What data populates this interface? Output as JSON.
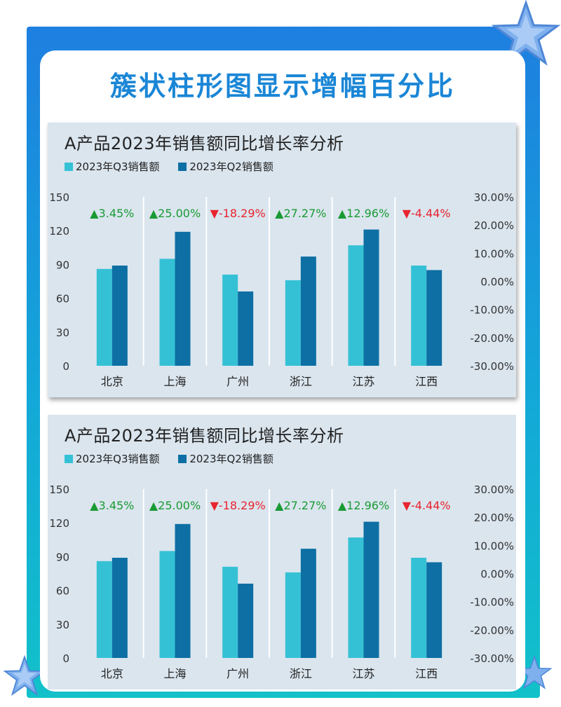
{
  "page": {
    "title": "簇状柱形图显示增幅百分比"
  },
  "colors": {
    "q3": "#35c1d5",
    "q2": "#0d6fa3",
    "up": "#1a9a33",
    "down": "#e8242e"
  },
  "charts": [
    {
      "title": "A产品2023年销售额同比增长率分析",
      "legend": [
        "2023年Q3销售额",
        "2023年Q2销售额"
      ]
    },
    {
      "title": "A产品2023年销售额同比增长率分析",
      "legend": [
        "2023年Q3销售额",
        "2023年Q2销售额"
      ]
    }
  ],
  "chart_data": [
    {
      "type": "bar",
      "title": "A产品2023年销售额同比增长率分析",
      "categories": [
        "北京",
        "上海",
        "广州",
        "浙江",
        "江苏",
        "江西"
      ],
      "series": [
        {
          "name": "2023年Q3销售额",
          "values": [
            86,
            95,
            81,
            76,
            107,
            89
          ]
        },
        {
          "name": "2023年Q2销售额",
          "values": [
            89,
            119,
            66,
            97,
            121,
            85
          ]
        }
      ],
      "growth_labels": [
        "▲3.45%",
        "▲25.00%",
        "▼-18.29%",
        "▲27.27%",
        "▲12.96%",
        "▼-4.44%"
      ],
      "growth_direction": [
        "up",
        "up",
        "down",
        "up",
        "up",
        "down"
      ],
      "ylim": [
        0,
        150
      ],
      "yticks": [
        "150",
        "120",
        "90",
        "60",
        "30",
        "0"
      ],
      "y2ticks": [
        "30.00%",
        "20.00%",
        "10.00%",
        "0.00%",
        "-10.00%",
        "-20.00%",
        "-30.00%"
      ],
      "legend_position": "top-left",
      "grid": "vertical-separators"
    },
    {
      "type": "bar",
      "title": "A产品2023年销售额同比增长率分析",
      "categories": [
        "北京",
        "上海",
        "广州",
        "浙江",
        "江苏",
        "江西"
      ],
      "series": [
        {
          "name": "2023年Q3销售额",
          "values": [
            86,
            95,
            81,
            76,
            107,
            89
          ]
        },
        {
          "name": "2023年Q2销售额",
          "values": [
            89,
            119,
            66,
            97,
            121,
            85
          ]
        }
      ],
      "growth_labels": [
        "▲3.45%",
        "▲25.00%",
        "▼-18.29%",
        "▲27.27%",
        "▲12.96%",
        "▼-4.44%"
      ],
      "growth_direction": [
        "up",
        "up",
        "down",
        "up",
        "up",
        "down"
      ],
      "ylim": [
        0,
        150
      ],
      "yticks": [
        "150",
        "120",
        "90",
        "60",
        "30",
        "0"
      ],
      "y2ticks": [
        "30.00%",
        "20.00%",
        "10.00%",
        "0.00%",
        "-10.00%",
        "-20.00%",
        "-30.00%"
      ],
      "legend_position": "top-left",
      "grid": "vertical-separators"
    }
  ]
}
